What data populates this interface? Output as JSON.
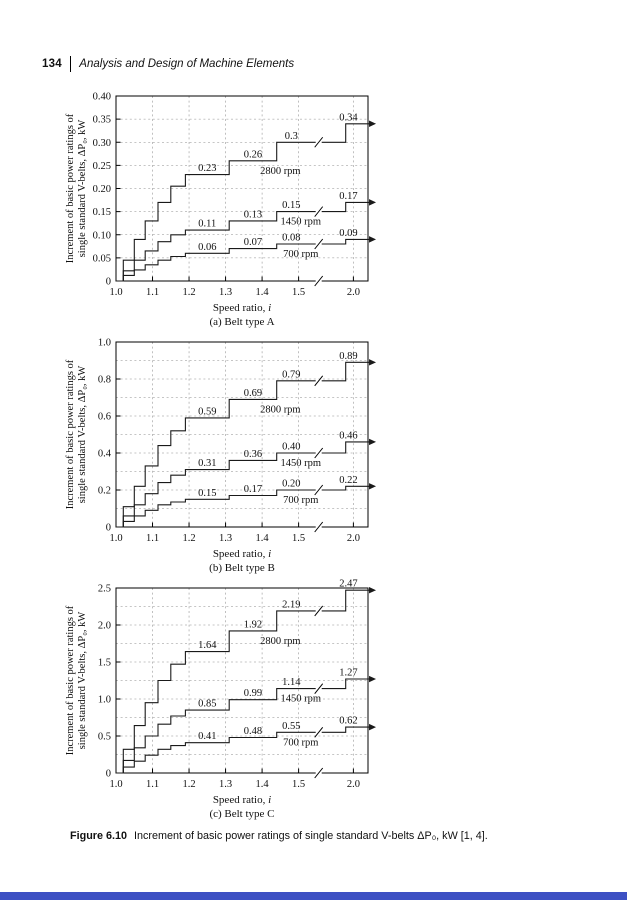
{
  "page": {
    "number": "134",
    "running_head": "Analysis and Design of Machine Elements",
    "figure": {
      "label": "Figure 6.10",
      "caption": "Increment of basic power ratings of single standard V-belts ΔP₀, kW [1, 4]."
    }
  },
  "colors": {
    "footer_bar": "#3d50c3",
    "curve": "#1a1a1a",
    "grid": "#8c8c8c"
  },
  "chart_data": [
    {
      "type": "line",
      "subtype": "step",
      "caption": "(a) Belt type A",
      "xlabel": "Speed ratio, i",
      "ylabel_lines": [
        "Increment of basic power ratings of",
        "single standard V-belts, ΔP₀, kW"
      ],
      "ylim": [
        0,
        0.4
      ],
      "x_break": {
        "from": 1.5,
        "to": 2.0
      },
      "yticks": [
        {
          "v": 0,
          "label": "0"
        },
        {
          "v": 0.05,
          "label": "0.05"
        },
        {
          "v": 0.1,
          "label": "0.10"
        },
        {
          "v": 0.15,
          "label": "0.15"
        },
        {
          "v": 0.2,
          "label": "0.20"
        },
        {
          "v": 0.25,
          "label": "0.25"
        },
        {
          "v": 0.3,
          "label": "0.30"
        },
        {
          "v": 0.35,
          "label": "0.35"
        },
        {
          "v": 0.4,
          "label": "0.40"
        }
      ],
      "ygrid_minor": [],
      "xticks": [
        {
          "x": 1.0,
          "label": "1.0"
        },
        {
          "x": 1.1,
          "label": "1.1"
        },
        {
          "x": 1.2,
          "label": "1.2"
        },
        {
          "x": 1.3,
          "label": "1.3"
        },
        {
          "x": 1.4,
          "label": "1.4"
        },
        {
          "x": 1.5,
          "label": "1.5"
        },
        {
          "x": 2.0,
          "label": "2.0"
        }
      ],
      "series": [
        {
          "name": "2800 rpm",
          "name_pos": {
            "x": 1.45,
            "v": 0.26
          },
          "steps": [
            [
              1.02,
              0.045
            ],
            [
              1.05,
              0.09
            ],
            [
              1.08,
              0.13
            ],
            [
              1.115,
              0.17
            ],
            [
              1.15,
              0.205
            ],
            [
              1.19,
              0.23
            ],
            [
              1.31,
              0.26
            ],
            [
              1.44,
              0.3
            ],
            [
              1.93,
              0.34
            ]
          ],
          "labels": [
            {
              "text": "0.23",
              "x": 1.25,
              "v": 0.23
            },
            {
              "text": "0.26",
              "x": 1.375,
              "v": 0.26
            },
            {
              "text": "0.3",
              "x": 1.48,
              "v": 0.3
            },
            {
              "text": "0.34",
              "x": 1.955,
              "v": 0.34
            }
          ]
        },
        {
          "name": "1450 rpm",
          "name_pos": {
            "x": 1.52,
            "v": 0.15
          },
          "steps": [
            [
              1.02,
              0.022
            ],
            [
              1.05,
              0.045
            ],
            [
              1.08,
              0.065
            ],
            [
              1.115,
              0.085
            ],
            [
              1.15,
              0.1
            ],
            [
              1.19,
              0.11
            ],
            [
              1.31,
              0.13
            ],
            [
              1.44,
              0.15
            ],
            [
              1.93,
              0.17
            ]
          ],
          "labels": [
            {
              "text": "0.11",
              "x": 1.25,
              "v": 0.11
            },
            {
              "text": "0.13",
              "x": 1.375,
              "v": 0.13
            },
            {
              "text": "0.15",
              "x": 1.48,
              "v": 0.15
            },
            {
              "text": "0.17",
              "x": 1.955,
              "v": 0.17
            }
          ]
        },
        {
          "name": "700 rpm",
          "name_pos": {
            "x": 1.52,
            "v": 0.08
          },
          "steps": [
            [
              1.02,
              0.012
            ],
            [
              1.05,
              0.024
            ],
            [
              1.08,
              0.035
            ],
            [
              1.115,
              0.045
            ],
            [
              1.15,
              0.053
            ],
            [
              1.19,
              0.06
            ],
            [
              1.31,
              0.07
            ],
            [
              1.44,
              0.08
            ],
            [
              1.93,
              0.09
            ]
          ],
          "labels": [
            {
              "text": "0.06",
              "x": 1.25,
              "v": 0.06
            },
            {
              "text": "0.07",
              "x": 1.375,
              "v": 0.07
            },
            {
              "text": "0.08",
              "x": 1.48,
              "v": 0.08
            },
            {
              "text": "0.09",
              "x": 1.955,
              "v": 0.09
            }
          ]
        }
      ]
    },
    {
      "type": "line",
      "subtype": "step",
      "caption": "(b) Belt type B",
      "xlabel": "Speed ratio, i",
      "ylabel_lines": [
        "Increment of basic power ratings of",
        "single standard V-belts, ΔP₀, kW"
      ],
      "ylim": [
        0,
        1.0
      ],
      "x_break": {
        "from": 1.5,
        "to": 2.0
      },
      "yticks": [
        {
          "v": 0,
          "label": "0"
        },
        {
          "v": 0.2,
          "label": "0.2"
        },
        {
          "v": 0.4,
          "label": "0.4"
        },
        {
          "v": 0.6,
          "label": "0.6"
        },
        {
          "v": 0.8,
          "label": "0.8"
        },
        {
          "v": 1.0,
          "label": "1.0"
        }
      ],
      "ygrid_minor": [
        0.1,
        0.3,
        0.5,
        0.7,
        0.9
      ],
      "xticks": [
        {
          "x": 1.0,
          "label": "1.0"
        },
        {
          "x": 1.1,
          "label": "1.1"
        },
        {
          "x": 1.2,
          "label": "1.2"
        },
        {
          "x": 1.3,
          "label": "1.3"
        },
        {
          "x": 1.4,
          "label": "1.4"
        },
        {
          "x": 1.5,
          "label": "1.5"
        },
        {
          "x": 2.0,
          "label": "2.0"
        }
      ],
      "series": [
        {
          "name": "2800 rpm",
          "name_pos": {
            "x": 1.45,
            "v": 0.69
          },
          "steps": [
            [
              1.02,
              0.11
            ],
            [
              1.05,
              0.22
            ],
            [
              1.08,
              0.33
            ],
            [
              1.115,
              0.44
            ],
            [
              1.15,
              0.52
            ],
            [
              1.19,
              0.59
            ],
            [
              1.31,
              0.69
            ],
            [
              1.44,
              0.79
            ],
            [
              1.93,
              0.89
            ]
          ],
          "labels": [
            {
              "text": "0.59",
              "x": 1.25,
              "v": 0.59
            },
            {
              "text": "0.69",
              "x": 1.375,
              "v": 0.69
            },
            {
              "text": "0.79",
              "x": 1.48,
              "v": 0.79
            },
            {
              "text": "0.89",
              "x": 1.955,
              "v": 0.89
            }
          ]
        },
        {
          "name": "1450 rpm",
          "name_pos": {
            "x": 1.52,
            "v": 0.4
          },
          "steps": [
            [
              1.02,
              0.06
            ],
            [
              1.05,
              0.12
            ],
            [
              1.08,
              0.18
            ],
            [
              1.115,
              0.24
            ],
            [
              1.15,
              0.28
            ],
            [
              1.19,
              0.31
            ],
            [
              1.31,
              0.36
            ],
            [
              1.44,
              0.4
            ],
            [
              1.93,
              0.46
            ]
          ],
          "labels": [
            {
              "text": "0.31",
              "x": 1.25,
              "v": 0.31
            },
            {
              "text": "0.36",
              "x": 1.375,
              "v": 0.36
            },
            {
              "text": "0.40",
              "x": 1.48,
              "v": 0.4
            },
            {
              "text": "0.46",
              "x": 1.955,
              "v": 0.46
            }
          ]
        },
        {
          "name": "700 rpm",
          "name_pos": {
            "x": 1.52,
            "v": 0.2
          },
          "steps": [
            [
              1.02,
              0.03
            ],
            [
              1.05,
              0.06
            ],
            [
              1.08,
              0.09
            ],
            [
              1.115,
              0.12
            ],
            [
              1.15,
              0.135
            ],
            [
              1.19,
              0.15
            ],
            [
              1.31,
              0.17
            ],
            [
              1.44,
              0.2
            ],
            [
              1.93,
              0.22
            ]
          ],
          "labels": [
            {
              "text": "0.15",
              "x": 1.25,
              "v": 0.15
            },
            {
              "text": "0.17",
              "x": 1.375,
              "v": 0.17
            },
            {
              "text": "0.20",
              "x": 1.48,
              "v": 0.2
            },
            {
              "text": "0.22",
              "x": 1.955,
              "v": 0.22
            }
          ]
        }
      ]
    },
    {
      "type": "line",
      "subtype": "step",
      "caption": "(c) Belt type C",
      "xlabel": "Speed ratio, i",
      "ylabel_lines": [
        "Increment of basic power ratings of",
        "single standard V-belts, ΔP₀, kW"
      ],
      "ylim": [
        0,
        2.5
      ],
      "x_break": {
        "from": 1.5,
        "to": 2.0
      },
      "yticks": [
        {
          "v": 0,
          "label": "0"
        },
        {
          "v": 0.5,
          "label": "0.5"
        },
        {
          "v": 1.0,
          "label": "1.0"
        },
        {
          "v": 1.5,
          "label": "1.5"
        },
        {
          "v": 2.0,
          "label": "2.0"
        },
        {
          "v": 2.5,
          "label": "2.5"
        }
      ],
      "ygrid_minor": [
        0.25,
        0.75,
        1.25,
        1.75,
        2.25
      ],
      "xticks": [
        {
          "x": 1.0,
          "label": "1.0"
        },
        {
          "x": 1.1,
          "label": "1.1"
        },
        {
          "x": 1.2,
          "label": "1.2"
        },
        {
          "x": 1.3,
          "label": "1.3"
        },
        {
          "x": 1.4,
          "label": "1.4"
        },
        {
          "x": 1.5,
          "label": "1.5"
        },
        {
          "x": 2.0,
          "label": "2.0"
        }
      ],
      "series": [
        {
          "name": "2800 rpm",
          "name_pos": {
            "x": 1.45,
            "v": 1.92
          },
          "steps": [
            [
              1.02,
              0.32
            ],
            [
              1.05,
              0.64
            ],
            [
              1.08,
              0.95
            ],
            [
              1.115,
              1.25
            ],
            [
              1.15,
              1.47
            ],
            [
              1.19,
              1.64
            ],
            [
              1.31,
              1.92
            ],
            [
              1.44,
              2.19
            ],
            [
              1.93,
              2.47
            ]
          ],
          "labels": [
            {
              "text": "1.64",
              "x": 1.25,
              "v": 1.64
            },
            {
              "text": "1.92",
              "x": 1.375,
              "v": 1.92
            },
            {
              "text": "2.19",
              "x": 1.48,
              "v": 2.19
            },
            {
              "text": "2.47",
              "x": 1.955,
              "v": 2.47
            }
          ]
        },
        {
          "name": "1450 rpm",
          "name_pos": {
            "x": 1.52,
            "v": 1.14
          },
          "steps": [
            [
              1.02,
              0.17
            ],
            [
              1.05,
              0.34
            ],
            [
              1.08,
              0.5
            ],
            [
              1.115,
              0.66
            ],
            [
              1.15,
              0.77
            ],
            [
              1.19,
              0.85
            ],
            [
              1.31,
              0.99
            ],
            [
              1.44,
              1.14
            ],
            [
              1.93,
              1.27
            ]
          ],
          "labels": [
            {
              "text": "0.85",
              "x": 1.25,
              "v": 0.85
            },
            {
              "text": "0.99",
              "x": 1.375,
              "v": 0.99
            },
            {
              "text": "1.14",
              "x": 1.48,
              "v": 1.14
            },
            {
              "text": "1.27",
              "x": 1.955,
              "v": 1.27
            }
          ]
        },
        {
          "name": "700 rpm",
          "name_pos": {
            "x": 1.52,
            "v": 0.55
          },
          "steps": [
            [
              1.02,
              0.08
            ],
            [
              1.05,
              0.16
            ],
            [
              1.08,
              0.24
            ],
            [
              1.115,
              0.32
            ],
            [
              1.15,
              0.37
            ],
            [
              1.19,
              0.41
            ],
            [
              1.31,
              0.48
            ],
            [
              1.44,
              0.55
            ],
            [
              1.93,
              0.62
            ]
          ],
          "labels": [
            {
              "text": "0.41",
              "x": 1.25,
              "v": 0.41
            },
            {
              "text": "0.48",
              "x": 1.375,
              "v": 0.48
            },
            {
              "text": "0.55",
              "x": 1.48,
              "v": 0.55
            },
            {
              "text": "0.62",
              "x": 1.955,
              "v": 0.62
            }
          ]
        }
      ]
    }
  ]
}
